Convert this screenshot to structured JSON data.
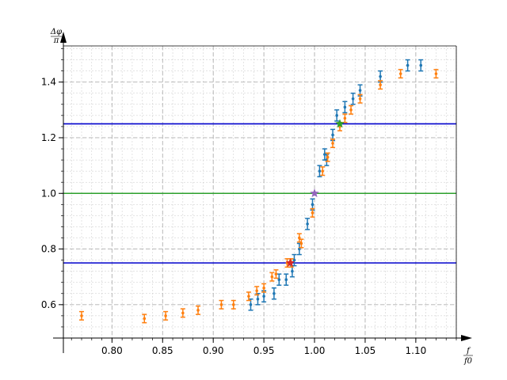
{
  "chart_data": {
    "type": "scatter",
    "title": "",
    "xlabel_num": "f",
    "xlabel_den": "f0",
    "ylabel_num": "Δφ",
    "ylabel_den": "π",
    "xlim": [
      0.752,
      1.14
    ],
    "ylim": [
      0.48,
      1.53
    ],
    "x_ticks": [
      0.8,
      0.85,
      0.9,
      0.95,
      1.0,
      1.05,
      1.1
    ],
    "x_tick_labels": [
      "0.80",
      "0.85",
      "0.90",
      "0.95",
      "1.00",
      "1.05",
      "1.10"
    ],
    "y_ticks": [
      0.6,
      0.8,
      1.0,
      1.2,
      1.4
    ],
    "y_tick_labels": [
      "0.6",
      "0.8",
      "1.0",
      "1.2",
      "1.4"
    ],
    "grid": true,
    "hlines": [
      {
        "y": 1.25,
        "color": "#0000cc"
      },
      {
        "y": 1.0,
        "color": "#2ca02c"
      },
      {
        "y": 0.75,
        "color": "#0000cc"
      }
    ],
    "series": [
      {
        "color": "#1f77b4",
        "points": [
          {
            "x": 0.937,
            "y": 0.6,
            "err": 0.02
          },
          {
            "x": 0.944,
            "y": 0.62,
            "err": 0.02
          },
          {
            "x": 0.95,
            "y": 0.63,
            "err": 0.02
          },
          {
            "x": 0.96,
            "y": 0.64,
            "err": 0.02
          },
          {
            "x": 0.965,
            "y": 0.69,
            "err": 0.02
          },
          {
            "x": 0.972,
            "y": 0.69,
            "err": 0.02
          },
          {
            "x": 0.978,
            "y": 0.72,
            "err": 0.02
          },
          {
            "x": 0.98,
            "y": 0.76,
            "err": 0.02
          },
          {
            "x": 0.985,
            "y": 0.8,
            "err": 0.02
          },
          {
            "x": 0.993,
            "y": 0.89,
            "err": 0.02
          },
          {
            "x": 0.998,
            "y": 0.96,
            "err": 0.02
          },
          {
            "x": 1.005,
            "y": 1.08,
            "err": 0.02
          },
          {
            "x": 1.01,
            "y": 1.14,
            "err": 0.02
          },
          {
            "x": 1.012,
            "y": 1.12,
            "err": 0.02
          },
          {
            "x": 1.018,
            "y": 1.21,
            "err": 0.02
          },
          {
            "x": 1.022,
            "y": 1.28,
            "err": 0.02
          },
          {
            "x": 1.03,
            "y": 1.31,
            "err": 0.02
          },
          {
            "x": 1.038,
            "y": 1.34,
            "err": 0.02
          },
          {
            "x": 1.045,
            "y": 1.37,
            "err": 0.02
          },
          {
            "x": 1.065,
            "y": 1.42,
            "err": 0.02
          },
          {
            "x": 1.092,
            "y": 1.46,
            "err": 0.02
          },
          {
            "x": 1.105,
            "y": 1.46,
            "err": 0.02
          }
        ]
      },
      {
        "color": "#ff7f0e",
        "points": [
          {
            "x": 0.77,
            "y": 0.56,
            "err": 0.015
          },
          {
            "x": 0.832,
            "y": 0.55,
            "err": 0.015
          },
          {
            "x": 0.853,
            "y": 0.56,
            "err": 0.015
          },
          {
            "x": 0.87,
            "y": 0.57,
            "err": 0.015
          },
          {
            "x": 0.885,
            "y": 0.58,
            "err": 0.015
          },
          {
            "x": 0.908,
            "y": 0.6,
            "err": 0.015
          },
          {
            "x": 0.92,
            "y": 0.6,
            "err": 0.015
          },
          {
            "x": 0.935,
            "y": 0.63,
            "err": 0.015
          },
          {
            "x": 0.943,
            "y": 0.65,
            "err": 0.015
          },
          {
            "x": 0.95,
            "y": 0.66,
            "err": 0.015
          },
          {
            "x": 0.958,
            "y": 0.7,
            "err": 0.015
          },
          {
            "x": 0.962,
            "y": 0.71,
            "err": 0.015
          },
          {
            "x": 0.973,
            "y": 0.75,
            "err": 0.015
          },
          {
            "x": 0.977,
            "y": 0.75,
            "err": 0.015
          },
          {
            "x": 0.985,
            "y": 0.84,
            "err": 0.015
          },
          {
            "x": 0.987,
            "y": 0.82,
            "err": 0.015
          },
          {
            "x": 0.998,
            "y": 0.93,
            "err": 0.015
          },
          {
            "x": 1.008,
            "y": 1.08,
            "err": 0.015
          },
          {
            "x": 1.013,
            "y": 1.13,
            "err": 0.015
          },
          {
            "x": 1.018,
            "y": 1.18,
            "err": 0.015
          },
          {
            "x": 1.025,
            "y": 1.24,
            "err": 0.015
          },
          {
            "x": 1.03,
            "y": 1.27,
            "err": 0.015
          },
          {
            "x": 1.036,
            "y": 1.3,
            "err": 0.015
          },
          {
            "x": 1.045,
            "y": 1.34,
            "err": 0.015
          },
          {
            "x": 1.065,
            "y": 1.39,
            "err": 0.015
          },
          {
            "x": 1.085,
            "y": 1.43,
            "err": 0.015
          },
          {
            "x": 1.12,
            "y": 1.43,
            "err": 0.015
          }
        ]
      }
    ],
    "markers": [
      {
        "x": 1.0,
        "y": 1.0,
        "color": "#9467bd",
        "shape": "star"
      },
      {
        "x": 1.025,
        "y": 1.25,
        "color": "#2ca02c",
        "shape": "star"
      },
      {
        "x": 0.976,
        "y": 0.75,
        "color": "#d62728",
        "shape": "star"
      }
    ]
  }
}
